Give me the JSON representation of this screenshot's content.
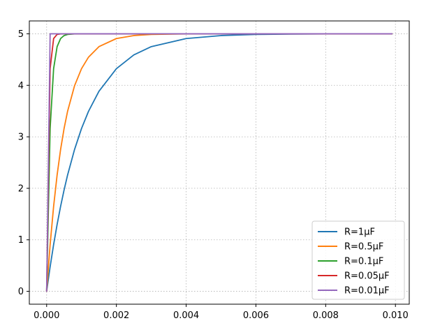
{
  "chart_data": {
    "type": "line",
    "title": "",
    "xlabel": "",
    "ylabel": "",
    "xlim": [
      -0.000496,
      0.010396
    ],
    "ylim": [
      -0.25,
      5.25
    ],
    "x_ticks": [
      0.0,
      0.002,
      0.004,
      0.006,
      0.008,
      0.01
    ],
    "x_tick_labels": [
      "0.000",
      "0.002",
      "0.004",
      "0.006",
      "0.008",
      "0.010"
    ],
    "y_ticks": [
      0,
      1,
      2,
      3,
      4,
      5
    ],
    "y_tick_labels": [
      "0",
      "1",
      "2",
      "3",
      "4",
      "5"
    ],
    "grid": true,
    "legend_position": "lower-right",
    "x_range": [
      0,
      0.0099
    ],
    "series": [
      {
        "name": "R=1μF",
        "color": "#1f77b4",
        "x": [
          0,
          0.0001,
          0.0002,
          0.0003,
          0.0004,
          0.0005,
          0.0006,
          0.0008,
          0.001,
          0.0012,
          0.0015,
          0.002,
          0.0025,
          0.003,
          0.004,
          0.005,
          0.006,
          0.007,
          0.008,
          0.009,
          0.0099
        ],
        "y": [
          0,
          0.476,
          0.906,
          1.296,
          1.648,
          1.967,
          2.256,
          2.753,
          3.161,
          3.494,
          3.884,
          4.323,
          4.59,
          4.751,
          4.908,
          4.966,
          4.988,
          4.995,
          4.998,
          4.999,
          5.0
        ]
      },
      {
        "name": "R=0.5μF",
        "color": "#ff7f0e",
        "x": [
          0,
          0.0001,
          0.0002,
          0.0003,
          0.0004,
          0.0005,
          0.0006,
          0.0008,
          0.001,
          0.0012,
          0.0015,
          0.002,
          0.0025,
          0.003,
          0.004,
          0.005,
          0.006,
          0.008,
          0.0099
        ],
        "y": [
          0,
          0.906,
          1.648,
          2.256,
          2.753,
          3.161,
          3.494,
          3.991,
          4.323,
          4.546,
          4.751,
          4.908,
          4.966,
          4.988,
          4.998,
          5.0,
          5.0,
          5.0,
          5.0
        ]
      },
      {
        "name": "R=0.1μF",
        "color": "#2ca02c",
        "x": [
          0,
          0.0001,
          0.0002,
          0.0003,
          0.0004,
          0.0005,
          0.0006,
          0.0008,
          0.001,
          0.002,
          0.004,
          0.006,
          0.008,
          0.0099
        ],
        "y": [
          0,
          3.161,
          4.323,
          4.751,
          4.908,
          4.966,
          4.988,
          4.998,
          5.0,
          5.0,
          5.0,
          5.0,
          5.0,
          5.0
        ]
      },
      {
        "name": "R=0.05μF",
        "color": "#d62728",
        "x": [
          0,
          0.0001,
          0.0002,
          0.0003,
          0.0004,
          0.0006,
          0.001,
          0.002,
          0.004,
          0.006,
          0.008,
          0.0099
        ],
        "y": [
          0,
          4.323,
          4.908,
          4.988,
          4.998,
          5.0,
          5.0,
          5.0,
          5.0,
          5.0,
          5.0,
          5.0
        ]
      },
      {
        "name": "R=0.01μF",
        "color": "#9467bd",
        "x": [
          0,
          0.0001,
          0.0002,
          0.0003,
          0.001,
          0.002,
          0.004,
          0.006,
          0.008,
          0.0099
        ],
        "y": [
          0,
          5.0,
          5.0,
          5.0,
          5.0,
          5.0,
          5.0,
          5.0,
          5.0,
          5.0
        ]
      }
    ]
  }
}
